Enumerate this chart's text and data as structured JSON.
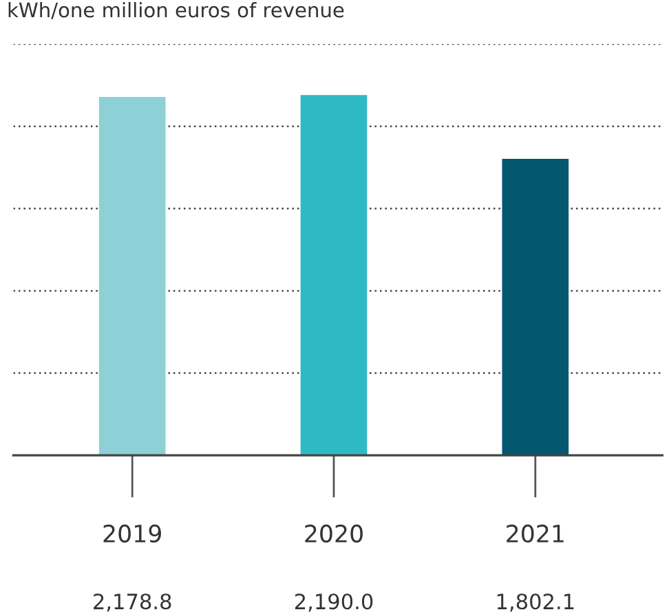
{
  "chart_data": {
    "type": "bar",
    "ylabel": "kWh/one million euros of revenue",
    "categories": [
      "2019",
      "2020",
      "2021"
    ],
    "values": [
      2178.8,
      2190.0,
      1802.1
    ],
    "colors": [
      "#8dd0d6",
      "#2fb9c6",
      "#03576e"
    ],
    "value_labels": [
      "2,178.8",
      "2,190.0",
      "1,802.1"
    ],
    "ylim": [
      0,
      2500
    ],
    "yticks": [
      {
        "value": 0,
        "label": null
      },
      {
        "value": 500,
        "label": null
      },
      {
        "value": 1000,
        "label": null
      },
      {
        "value": 1500,
        "label": null
      },
      {
        "value": 2000,
        "label": null
      },
      {
        "value": 2500,
        "label": null
      }
    ],
    "grid": "y",
    "legend": false,
    "tick_labels": "x"
  }
}
